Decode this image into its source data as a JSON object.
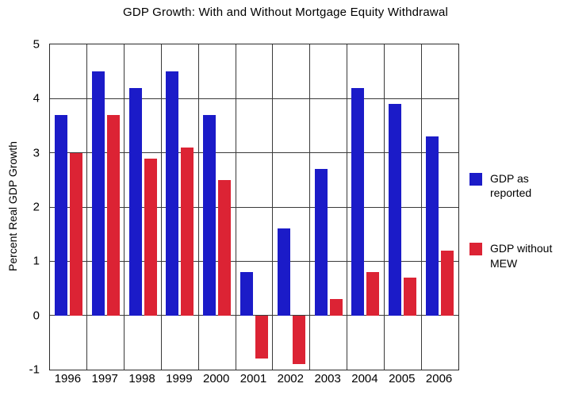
{
  "chart_data": {
    "type": "bar",
    "title": "GDP Growth: With and Without Mortgage Equity Withdrawal",
    "xlabel": "",
    "ylabel": "Percent Real GDP Growth",
    "categories": [
      "1996",
      "1997",
      "1998",
      "1999",
      "2000",
      "2001",
      "2002",
      "2003",
      "2004",
      "2005",
      "2006"
    ],
    "series": [
      {
        "name": "GDP as reported",
        "color": "#1b1bc8",
        "values": [
          3.7,
          4.5,
          4.2,
          4.5,
          3.7,
          0.8,
          1.6,
          2.7,
          4.2,
          3.9,
          3.3
        ]
      },
      {
        "name": "GDP without MEW",
        "color": "#dc2334",
        "values": [
          3.0,
          3.7,
          2.9,
          3.1,
          2.5,
          -0.8,
          -0.9,
          0.3,
          0.8,
          0.7,
          1.2
        ]
      }
    ],
    "ylim": [
      -1,
      5
    ],
    "yticks": [
      5,
      4,
      3,
      2,
      1,
      0,
      -1
    ],
    "grid": true,
    "legend_position": "right"
  }
}
